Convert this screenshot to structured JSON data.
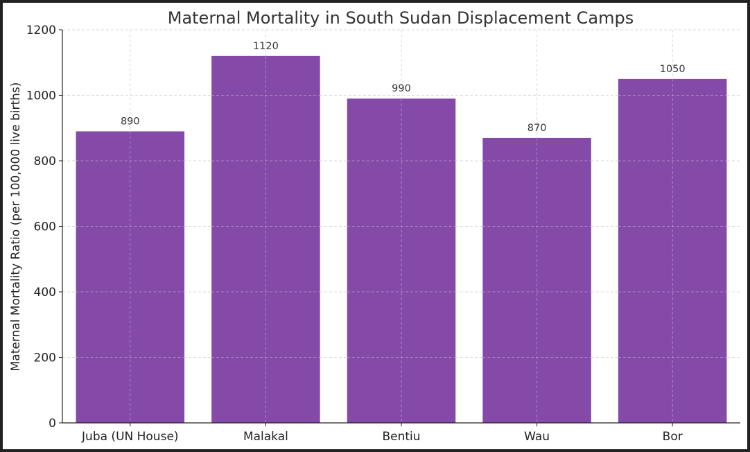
{
  "chart_data": {
    "type": "bar",
    "title": "Maternal Mortality in South Sudan Displacement Camps",
    "xlabel": "",
    "ylabel": "Maternal Mortality Ratio (per 100,000 live births)",
    "categories": [
      "Juba (UN House)",
      "Malakal",
      "Bentiu",
      "Wau",
      "Bor"
    ],
    "values": [
      890,
      1120,
      990,
      870,
      1050
    ],
    "data_labels": [
      "890",
      "1120",
      "990",
      "870",
      "1050"
    ],
    "ylim": [
      0,
      1200
    ],
    "yticks": [
      0,
      200,
      400,
      600,
      800,
      1000,
      1200
    ],
    "ytick_labels": [
      "0",
      "200",
      "400",
      "600",
      "800",
      "1000",
      "1200"
    ],
    "bar_color": "#8549a8",
    "grid": true,
    "grid_color": "#d9d9d9",
    "legend": "none"
  }
}
